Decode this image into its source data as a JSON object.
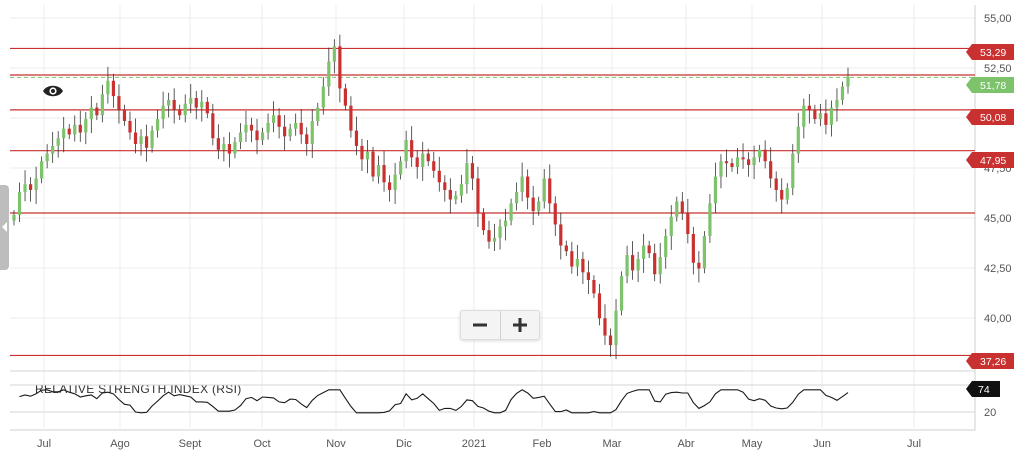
{
  "chart_data": {
    "type": "candlestick",
    "x_labels": [
      "Jul",
      "Ago",
      "Sept",
      "Oct",
      "Nov",
      "Dic",
      "2021",
      "Feb",
      "Mar",
      "Abr",
      "May",
      "Jun",
      "Jul"
    ],
    "y_ticks": [
      "55,00",
      "52,50",
      "47,50",
      "45,00",
      "42,50",
      "40,00"
    ],
    "ylim": [
      36.5,
      55.4
    ],
    "grid": true,
    "colors": {
      "up": "#7cc36b",
      "down": "#c8312f",
      "level": "#c8312f",
      "last_price": "#7cc36b",
      "rsi_line": "#1a1a1a"
    },
    "price_levels": [
      "53,29",
      "50,08",
      "47,95",
      "37,26"
    ],
    "current_price": "51,78",
    "closes": [
      44.6,
      45.8,
      46.2,
      45.9,
      46.5,
      47.4,
      47.8,
      48.2,
      48.6,
      49.1,
      48.8,
      49.3,
      48.9,
      49.6,
      50.2,
      49.8,
      50.9,
      51.6,
      50.8,
      50.1,
      49.5,
      48.9,
      48.3,
      48.7,
      48.1,
      49.0,
      49.6,
      50.3,
      50.6,
      50.1,
      49.8,
      50.4,
      50.7,
      50.2,
      50.5,
      49.9,
      48.6,
      48.0,
      48.3,
      47.8,
      48.4,
      48.9,
      49.3,
      49.0,
      48.5,
      48.9,
      49.4,
      49.8,
      49.2,
      48.7,
      49.1,
      49.4,
      48.8,
      48.3,
      49.5,
      50.2,
      51.3,
      52.6,
      53.4,
      51.2,
      50.3,
      49.0,
      48.2,
      47.5,
      47.9,
      46.6,
      47.2,
      46.3,
      45.9,
      46.7,
      47.4,
      48.5,
      47.6,
      47.1,
      47.8,
      47.4,
      46.9,
      46.3,
      45.9,
      45.4,
      45.6,
      46.2,
      47.3,
      46.5,
      44.7,
      43.8,
      43.2,
      43.4,
      44.0,
      44.3,
      45.2,
      45.8,
      46.6,
      45.5,
      44.8,
      45.3,
      46.5,
      45.2,
      44.1,
      43.0,
      42.7,
      41.9,
      42.3,
      41.6,
      41.2,
      40.5,
      39.2,
      38.3,
      37.8,
      39.6,
      41.4,
      42.5,
      41.7,
      42.3,
      43.0,
      42.6,
      41.5,
      42.4,
      43.5,
      44.5,
      45.3,
      44.7,
      43.6,
      42.1,
      41.8,
      43.5,
      45.2,
      46.6,
      47.4,
      47.3,
      47.1,
      47.6,
      47.5,
      47.2,
      47.6,
      48.0,
      47.4,
      46.5,
      45.9,
      45.4,
      46.0,
      47.8,
      49.2,
      50.3,
      50.1,
      49.6,
      49.9,
      49.3,
      50.2,
      50.6,
      51.3,
      51.8
    ]
  },
  "rsi": {
    "title": "RELATIVE STRENGTH INDEX (RSI)",
    "ticks": [
      "20"
    ],
    "value": "74"
  },
  "controls": {
    "zoom_out_icon": "minus-icon",
    "zoom_in_icon": "plus-icon",
    "eye_icon": "eye-icon",
    "handle_icon": "left-arrow-icon"
  }
}
